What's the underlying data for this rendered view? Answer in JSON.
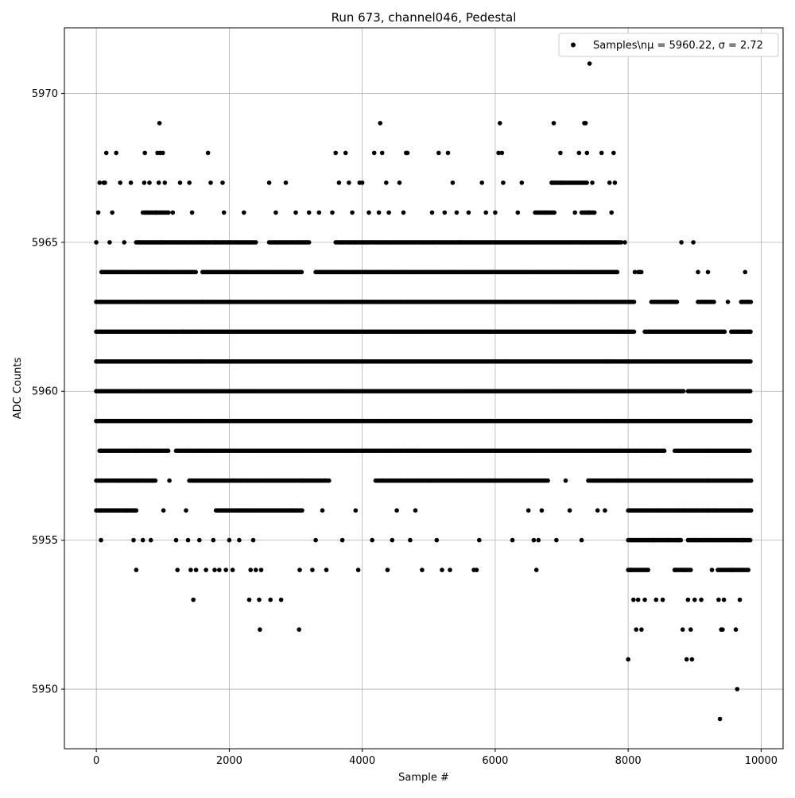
{
  "chart_data": {
    "type": "scatter",
    "title": "Run 673, channel046, Pedestal",
    "xlabel": "Sample #",
    "ylabel": "ADC Counts",
    "xlim": [
      -480,
      10330
    ],
    "ylim": [
      5948,
      5972.2
    ],
    "x_ticks": [
      0,
      2000,
      4000,
      6000,
      8000,
      10000
    ],
    "x_tick_labels": [
      "0",
      "2000",
      "4000",
      "6000",
      "8000",
      "10000"
    ],
    "y_ticks": [
      5950,
      5955,
      5960,
      5965,
      5970
    ],
    "y_tick_labels": [
      "5950",
      "5955",
      "5960",
      "5965",
      "5970"
    ],
    "grid": true,
    "legend_position": "top-right",
    "legend": [
      {
        "label": "Samples\\nμ = 5960.22, σ = 2.72",
        "marker": "dot"
      }
    ],
    "marker_color": "#000000",
    "series": [
      {
        "name": "Samples\\nμ = 5960.22, σ = 2.72",
        "points": [
          [
            0,
            5965
          ],
          [
            0,
            5963
          ],
          [
            0,
            5961
          ],
          [
            0,
            5960
          ],
          [
            0,
            5959
          ],
          [
            30,
            5966
          ],
          [
            50,
            5967
          ],
          [
            60,
            5962
          ],
          [
            60,
            5957
          ],
          [
            60,
            5956
          ],
          [
            70,
            5955
          ],
          [
            80,
            5964
          ],
          [
            80,
            5958
          ],
          [
            110,
            5967
          ],
          [
            130,
            5967
          ],
          [
            150,
            5968
          ],
          [
            200,
            5965
          ],
          [
            240,
            5966
          ],
          [
            300,
            5968
          ],
          [
            330,
            5957
          ],
          [
            360,
            5967
          ],
          [
            400,
            5964
          ],
          [
            420,
            5965
          ],
          [
            450,
            5956
          ],
          [
            520,
            5967
          ],
          [
            560,
            5955
          ],
          [
            580,
            5958
          ],
          [
            600,
            5954
          ],
          [
            700,
            5955
          ],
          [
            720,
            5967
          ],
          [
            730,
            5968
          ],
          [
            750,
            5966
          ],
          [
            760,
            5964
          ],
          [
            800,
            5967
          ],
          [
            820,
            5955
          ],
          [
            850,
            5957
          ],
          [
            900,
            5966
          ],
          [
            920,
            5968
          ],
          [
            940,
            5967
          ],
          [
            950,
            5969
          ],
          [
            960,
            5968
          ],
          [
            980,
            5965
          ],
          [
            1000,
            5968
          ],
          [
            1010,
            5956
          ],
          [
            1030,
            5967
          ],
          [
            1050,
            5964
          ],
          [
            1100,
            5957
          ],
          [
            1150,
            5966
          ],
          [
            1200,
            5955
          ],
          [
            1220,
            5954
          ],
          [
            1260,
            5967
          ],
          [
            1300,
            5962
          ],
          [
            1350,
            5956
          ],
          [
            1380,
            5955
          ],
          [
            1400,
            5967
          ],
          [
            1420,
            5954
          ],
          [
            1440,
            5966
          ],
          [
            1460,
            5953
          ],
          [
            1480,
            5957
          ],
          [
            1500,
            5954
          ],
          [
            1550,
            5955
          ],
          [
            1600,
            5964
          ],
          [
            1650,
            5954
          ],
          [
            1680,
            5968
          ],
          [
            1720,
            5967
          ],
          [
            1760,
            5955
          ],
          [
            1780,
            5954
          ],
          [
            1800,
            5965
          ],
          [
            1850,
            5954
          ],
          [
            1900,
            5967
          ],
          [
            1920,
            5966
          ],
          [
            1950,
            5954
          ],
          [
            2000,
            5955
          ],
          [
            2050,
            5954
          ],
          [
            2100,
            5964
          ],
          [
            2150,
            5955
          ],
          [
            2220,
            5966
          ],
          [
            2260,
            5957
          ],
          [
            2300,
            5953
          ],
          [
            2320,
            5954
          ],
          [
            2360,
            5955
          ],
          [
            2400,
            5954
          ],
          [
            2450,
            5953
          ],
          [
            2460,
            5952
          ],
          [
            2480,
            5954
          ],
          [
            2600,
            5967
          ],
          [
            2620,
            5953
          ],
          [
            2700,
            5966
          ],
          [
            2780,
            5953
          ],
          [
            2850,
            5967
          ],
          [
            2950,
            5956
          ],
          [
            3000,
            5966
          ],
          [
            3050,
            5952
          ],
          [
            3060,
            5954
          ],
          [
            3100,
            5957
          ],
          [
            3200,
            5966
          ],
          [
            3250,
            5954
          ],
          [
            3300,
            5955
          ],
          [
            3350,
            5966
          ],
          [
            3400,
            5956
          ],
          [
            3460,
            5954
          ],
          [
            3500,
            5957
          ],
          [
            3550,
            5966
          ],
          [
            3600,
            5968
          ],
          [
            3650,
            5967
          ],
          [
            3700,
            5955
          ],
          [
            3750,
            5968
          ],
          [
            3800,
            5967
          ],
          [
            3850,
            5966
          ],
          [
            3900,
            5956
          ],
          [
            3940,
            5954
          ],
          [
            3960,
            5967
          ],
          [
            4000,
            5967
          ],
          [
            4100,
            5966
          ],
          [
            4150,
            5955
          ],
          [
            4180,
            5968
          ],
          [
            4250,
            5966
          ],
          [
            4270,
            5969
          ],
          [
            4300,
            5968
          ],
          [
            4360,
            5967
          ],
          [
            4380,
            5954
          ],
          [
            4400,
            5966
          ],
          [
            4450,
            5955
          ],
          [
            4520,
            5956
          ],
          [
            4560,
            5967
          ],
          [
            4620,
            5966
          ],
          [
            4660,
            5968
          ],
          [
            4680,
            5968
          ],
          [
            4720,
            5955
          ],
          [
            4800,
            5956
          ],
          [
            4900,
            5954
          ],
          [
            5000,
            5957
          ],
          [
            5050,
            5966
          ],
          [
            5120,
            5955
          ],
          [
            5150,
            5968
          ],
          [
            5200,
            5954
          ],
          [
            5240,
            5966
          ],
          [
            5290,
            5968
          ],
          [
            5320,
            5954
          ],
          [
            5360,
            5967
          ],
          [
            5420,
            5966
          ],
          [
            5480,
            5965
          ],
          [
            5520,
            5957
          ],
          [
            5600,
            5966
          ],
          [
            5680,
            5954
          ],
          [
            5720,
            5954
          ],
          [
            5760,
            5955
          ],
          [
            5800,
            5967
          ],
          [
            5860,
            5966
          ],
          [
            5920,
            5957
          ],
          [
            6000,
            5966
          ],
          [
            6050,
            5968
          ],
          [
            6070,
            5969
          ],
          [
            6100,
            5968
          ],
          [
            6120,
            5967
          ],
          [
            6200,
            5964
          ],
          [
            6260,
            5955
          ],
          [
            6340,
            5966
          ],
          [
            6400,
            5967
          ],
          [
            6500,
            5956
          ],
          [
            6580,
            5955
          ],
          [
            6620,
            5954
          ],
          [
            6650,
            5955
          ],
          [
            6700,
            5956
          ],
          [
            6760,
            5966
          ],
          [
            6850,
            5967
          ],
          [
            6880,
            5969
          ],
          [
            6920,
            5955
          ],
          [
            6980,
            5968
          ],
          [
            7000,
            5967
          ],
          [
            7060,
            5957
          ],
          [
            7120,
            5956
          ],
          [
            7200,
            5966
          ],
          [
            7260,
            5968
          ],
          [
            7300,
            5955
          ],
          [
            7340,
            5969
          ],
          [
            7360,
            5969
          ],
          [
            7380,
            5968
          ],
          [
            7400,
            5966
          ],
          [
            7420,
            5971
          ],
          [
            7460,
            5967
          ],
          [
            7500,
            5957
          ],
          [
            7540,
            5956
          ],
          [
            7600,
            5968
          ],
          [
            7650,
            5956
          ],
          [
            7720,
            5967
          ],
          [
            7750,
            5966
          ],
          [
            7780,
            5968
          ],
          [
            7800,
            5967
          ],
          [
            7850,
            5957
          ],
          [
            7950,
            5965
          ],
          [
            8000,
            5951
          ],
          [
            8040,
            5954
          ],
          [
            8080,
            5953
          ],
          [
            8100,
            5964
          ],
          [
            8120,
            5952
          ],
          [
            8150,
            5953
          ],
          [
            8200,
            5952
          ],
          [
            8250,
            5953
          ],
          [
            8300,
            5954
          ],
          [
            8380,
            5955
          ],
          [
            8420,
            5953
          ],
          [
            8450,
            5956
          ],
          [
            8520,
            5953
          ],
          [
            8600,
            5955
          ],
          [
            8650,
            5963
          ],
          [
            8700,
            5954
          ],
          [
            8760,
            5955
          ],
          [
            8800,
            5965
          ],
          [
            8820,
            5952
          ],
          [
            8850,
            5954
          ],
          [
            8880,
            5951
          ],
          [
            8900,
            5953
          ],
          [
            8940,
            5952
          ],
          [
            8960,
            5951
          ],
          [
            8980,
            5965
          ],
          [
            9000,
            5953
          ],
          [
            9050,
            5964
          ],
          [
            9100,
            5953
          ],
          [
            9150,
            5963
          ],
          [
            9200,
            5964
          ],
          [
            9260,
            5954
          ],
          [
            9300,
            5956
          ],
          [
            9360,
            5953
          ],
          [
            9380,
            5949
          ],
          [
            9400,
            5952
          ],
          [
            9420,
            5952
          ],
          [
            9440,
            5953
          ],
          [
            9500,
            5963
          ],
          [
            9560,
            5954
          ],
          [
            9620,
            5952
          ],
          [
            9640,
            5950
          ],
          [
            9680,
            5953
          ],
          [
            9720,
            5955
          ],
          [
            9760,
            5964
          ],
          [
            9800,
            5963
          ],
          [
            9820,
            5956
          ],
          [
            9840,
            5962
          ]
        ],
        "dense_rows": [
          {
            "y": 5964,
            "x_ranges": [
              [
                80,
                1500
              ],
              [
                1600,
                3100
              ],
              [
                3300,
                7850
              ],
              [
                8150,
                8200
              ]
            ]
          },
          {
            "y": 5963,
            "x_ranges": [
              [
                0,
                8100
              ],
              [
                8350,
                8750
              ],
              [
                9050,
                9300
              ],
              [
                9700,
                9850
              ]
            ]
          },
          {
            "y": 5962,
            "x_ranges": [
              [
                0,
                8100
              ],
              [
                8250,
                9450
              ],
              [
                9550,
                9850
              ]
            ]
          },
          {
            "y": 5961,
            "x_ranges": [
              [
                0,
                9850
              ]
            ]
          },
          {
            "y": 5960,
            "x_ranges": [
              [
                0,
                8850
              ],
              [
                8900,
                9850
              ]
            ]
          },
          {
            "y": 5959,
            "x_ranges": [
              [
                0,
                9850
              ]
            ]
          },
          {
            "y": 5958,
            "x_ranges": [
              [
                50,
                1100
              ],
              [
                1200,
                8550
              ],
              [
                8700,
                9850
              ]
            ]
          },
          {
            "y": 5957,
            "x_ranges": [
              [
                0,
                900
              ],
              [
                1400,
                3500
              ],
              [
                4200,
                6800
              ],
              [
                7400,
                9850
              ]
            ]
          },
          {
            "y": 5956,
            "x_ranges": [
              [
                0,
                600
              ],
              [
                1800,
                3100
              ],
              [
                8000,
                9850
              ]
            ]
          },
          {
            "y": 5955,
            "x_ranges": [
              [
                8000,
                8800
              ],
              [
                8900,
                9850
              ]
            ]
          },
          {
            "y": 5954,
            "x_ranges": [
              [
                8000,
                8300
              ],
              [
                8700,
                8950
              ],
              [
                9350,
                9820
              ]
            ]
          },
          {
            "y": 5965,
            "x_ranges": [
              [
                600,
                2400
              ],
              [
                2600,
                3200
              ],
              [
                3600,
                7900
              ]
            ]
          },
          {
            "y": 5966,
            "x_ranges": [
              [
                700,
                1100
              ],
              [
                6600,
                6900
              ],
              [
                7300,
                7500
              ]
            ]
          },
          {
            "y": 5967,
            "x_ranges": [
              [
                6850,
                7400
              ]
            ]
          }
        ]
      }
    ]
  }
}
